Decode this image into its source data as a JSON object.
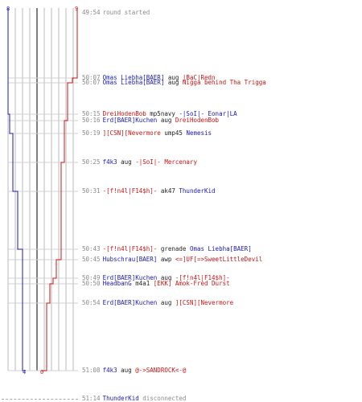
{
  "colors": {
    "team_blue": "#1a1ab4",
    "team_red": "#c81414",
    "neutral": "#8a8a8a",
    "grid": "#b8b8b8"
  },
  "scores": {
    "blue_start": "8",
    "red_start": "9",
    "blue_end": "4",
    "red_end": "0"
  },
  "events": [
    {
      "time": "49:54",
      "parts": [
        {
          "text": "round started",
          "color": "neutral"
        }
      ]
    },
    {
      "time": "50:07",
      "parts": [
        {
          "text": "Omas Liebha[BAER]",
          "color": "blue"
        },
        {
          "text": " aug ",
          "color": "black"
        },
        {
          "text": "|BaC|Redn",
          "color": "red"
        }
      ]
    },
    {
      "time": "50:07",
      "parts": [
        {
          "text": "Omas Liebha[BAER]",
          "color": "blue"
        },
        {
          "text": " aug ",
          "color": "black"
        },
        {
          "text": "Nigga behind Tha Trigga",
          "color": "red"
        }
      ]
    },
    {
      "time": "50:15",
      "parts": [
        {
          "text": "DreiHodenBob",
          "color": "red"
        },
        {
          "text": " mp5navy ",
          "color": "black"
        },
        {
          "text": "-|SoI|- Eonar|LA",
          "color": "blue"
        }
      ]
    },
    {
      "time": "50:16",
      "parts": [
        {
          "text": "Erd[BAER]Kuchen",
          "color": "blue"
        },
        {
          "text": " aug ",
          "color": "black"
        },
        {
          "text": "DreiHodenBob",
          "color": "red"
        }
      ]
    },
    {
      "time": "50:19",
      "parts": [
        {
          "text": "][CSN][Nevermore",
          "color": "red"
        },
        {
          "text": " ump45 ",
          "color": "black"
        },
        {
          "text": "Nemesis",
          "color": "blue"
        }
      ]
    },
    {
      "time": "50:25",
      "parts": [
        {
          "text": "f4k3",
          "color": "blue"
        },
        {
          "text": " aug ",
          "color": "black"
        },
        {
          "text": "-|SoI|- Mercenary",
          "color": "red"
        }
      ]
    },
    {
      "time": "50:31",
      "parts": [
        {
          "text": "-[f!n4l|F14$h]-",
          "color": "red"
        },
        {
          "text": " ak47 ",
          "color": "black"
        },
        {
          "text": "ThunderKid",
          "color": "blue"
        }
      ]
    },
    {
      "time": "50:43",
      "parts": [
        {
          "text": "-[f!n4l|F14$h]-",
          "color": "red"
        },
        {
          "text": " grenade ",
          "color": "black"
        },
        {
          "text": "Omas Liebha[BAER]",
          "color": "blue"
        }
      ]
    },
    {
      "time": "50:45",
      "parts": [
        {
          "text": "Hubschrau[BAER]",
          "color": "blue"
        },
        {
          "text": " awp ",
          "color": "black"
        },
        {
          "text": "<=]UF[=>SweetLittleDevil",
          "color": "red"
        }
      ]
    },
    {
      "time": "50:49",
      "parts": [
        {
          "text": "Erd[BAER]Kuchen",
          "color": "blue"
        },
        {
          "text": " aug ",
          "color": "black"
        },
        {
          "text": "-[f!n4l|F14$h]-",
          "color": "red"
        }
      ]
    },
    {
      "time": "50:50",
      "parts": [
        {
          "text": "HeadbanG",
          "color": "blue"
        },
        {
          "text": " m4a1 ",
          "color": "black"
        },
        {
          "text": "[EKK] Amok-Fred Durst",
          "color": "red"
        }
      ]
    },
    {
      "time": "50:54",
      "parts": [
        {
          "text": "Erd[BAER]Kuchen",
          "color": "blue"
        },
        {
          "text": " aug ",
          "color": "black"
        },
        {
          "text": "][CSN][Nevermore",
          "color": "red"
        }
      ]
    },
    {
      "time": "51:08",
      "parts": [
        {
          "text": "f4k3",
          "color": "blue"
        },
        {
          "text": " aug ",
          "color": "black"
        },
        {
          "text": "@->SANDROCK<-@",
          "color": "red"
        }
      ]
    },
    {
      "time": "51:14",
      "parts": [
        {
          "text": "ThunderKid",
          "color": "blue"
        },
        {
          "text": " disconnected",
          "color": "neutral"
        }
      ]
    }
  ]
}
